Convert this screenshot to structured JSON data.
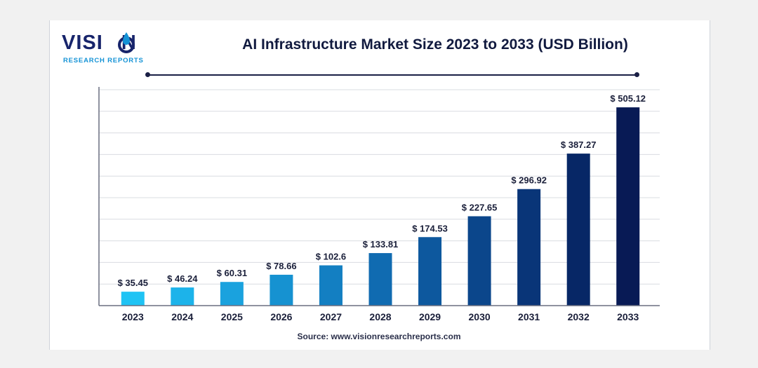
{
  "brand": {
    "name_left": "VISI",
    "name_right": "N",
    "tagline": "RESEARCH REPORTS",
    "drop_icon": "water-drop-icon",
    "colors": {
      "navy": "#17246b",
      "blue": "#1593d6"
    }
  },
  "source": "Source: www.visionresearchreports.com",
  "chart_data": {
    "type": "bar",
    "title": "AI Infrastructure Market Size 2023 to 2033 (USD Billion)",
    "categories": [
      "2023",
      "2024",
      "2025",
      "2026",
      "2027",
      "2028",
      "2029",
      "2030",
      "2031",
      "2032",
      "2033"
    ],
    "values": [
      35.45,
      46.24,
      60.31,
      78.66,
      102.6,
      133.81,
      174.53,
      227.65,
      296.92,
      387.27,
      505.12
    ],
    "value_labels": [
      "$ 35.45",
      "$ 46.24",
      "$ 60.31",
      "$ 78.66",
      "$ 102.6",
      "$ 133.81",
      "$ 174.53",
      "$ 227.65",
      "$ 296.92",
      "$ 387.27",
      "$ 505.12"
    ],
    "ylim": [
      0,
      550
    ],
    "grid": true,
    "legend": "none",
    "bar_colors": [
      "#1fc3f4",
      "#1cb3ea",
      "#1aa2de",
      "#1692d1",
      "#137fc2",
      "#106bb1",
      "#0d589e",
      "#0b468b",
      "#093578",
      "#072766",
      "#081a55"
    ]
  }
}
